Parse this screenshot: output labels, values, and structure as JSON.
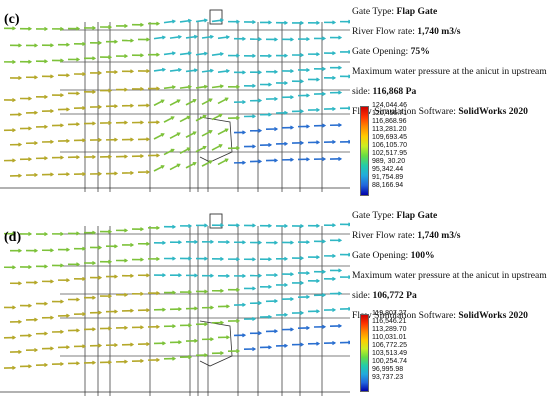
{
  "panels": [
    {
      "label": "(c)",
      "gate_type_label": "Gate Type:",
      "gate_type": "Flap Gate",
      "flow_rate_label": "River Flow rate:",
      "flow_rate": "1,740 m3/s",
      "gate_opening_label": "Gate Opening:",
      "gate_opening": "75%",
      "pressure_label_1": "Maximum water pressure at the anicut in upstream",
      "pressure_label_2": "side:",
      "pressure": "116,868 Pa",
      "software_label": "Flow Simulation Software:",
      "software": "SolidWorks 2020",
      "legend_values": [
        "124,044.46",
        "120,456.71",
        "116,868.96",
        "113,281.20",
        "109,693.45",
        "106,105.70",
        "102,517.95",
        "989, 30.20",
        "95,342.44",
        "91,754.89",
        "88,166.94"
      ]
    },
    {
      "label": "(d)",
      "gate_type_label": "Gate Type:",
      "gate_type": "Flap Gate",
      "flow_rate_label": "River Flow rate:",
      "flow_rate": "1,740 m3/s",
      "gate_opening_label": "Gate Opening:",
      "gate_opening": "100%",
      "pressure_label_1": "Maximum water pressure at the anicut in upstream",
      "pressure_label_2": "side:",
      "pressure": "106,772 Pa",
      "software_label": "Flow Simulation Software:",
      "software": "SolidWorks 2020",
      "legend_values": [
        "119,807.27",
        "116,546.21",
        "113,289.70",
        "110,031.01",
        "106,772.25",
        "103,513.49",
        "100,254.74",
        "96,995.98",
        "93,737.23"
      ]
    }
  ],
  "colors": {
    "legend_gradient": [
      "#cc0000",
      "#ff3300",
      "#ff8800",
      "#ffcc00",
      "#ccee22",
      "#66dd44",
      "#22ccaa",
      "#22aadd",
      "#2266dd",
      "#0000aa"
    ],
    "arrow_high": "#b5a82a",
    "arrow_mid": "#7dc23a",
    "arrow_low": "#2fb7c4",
    "arrow_vlow": "#2a6fd0"
  }
}
